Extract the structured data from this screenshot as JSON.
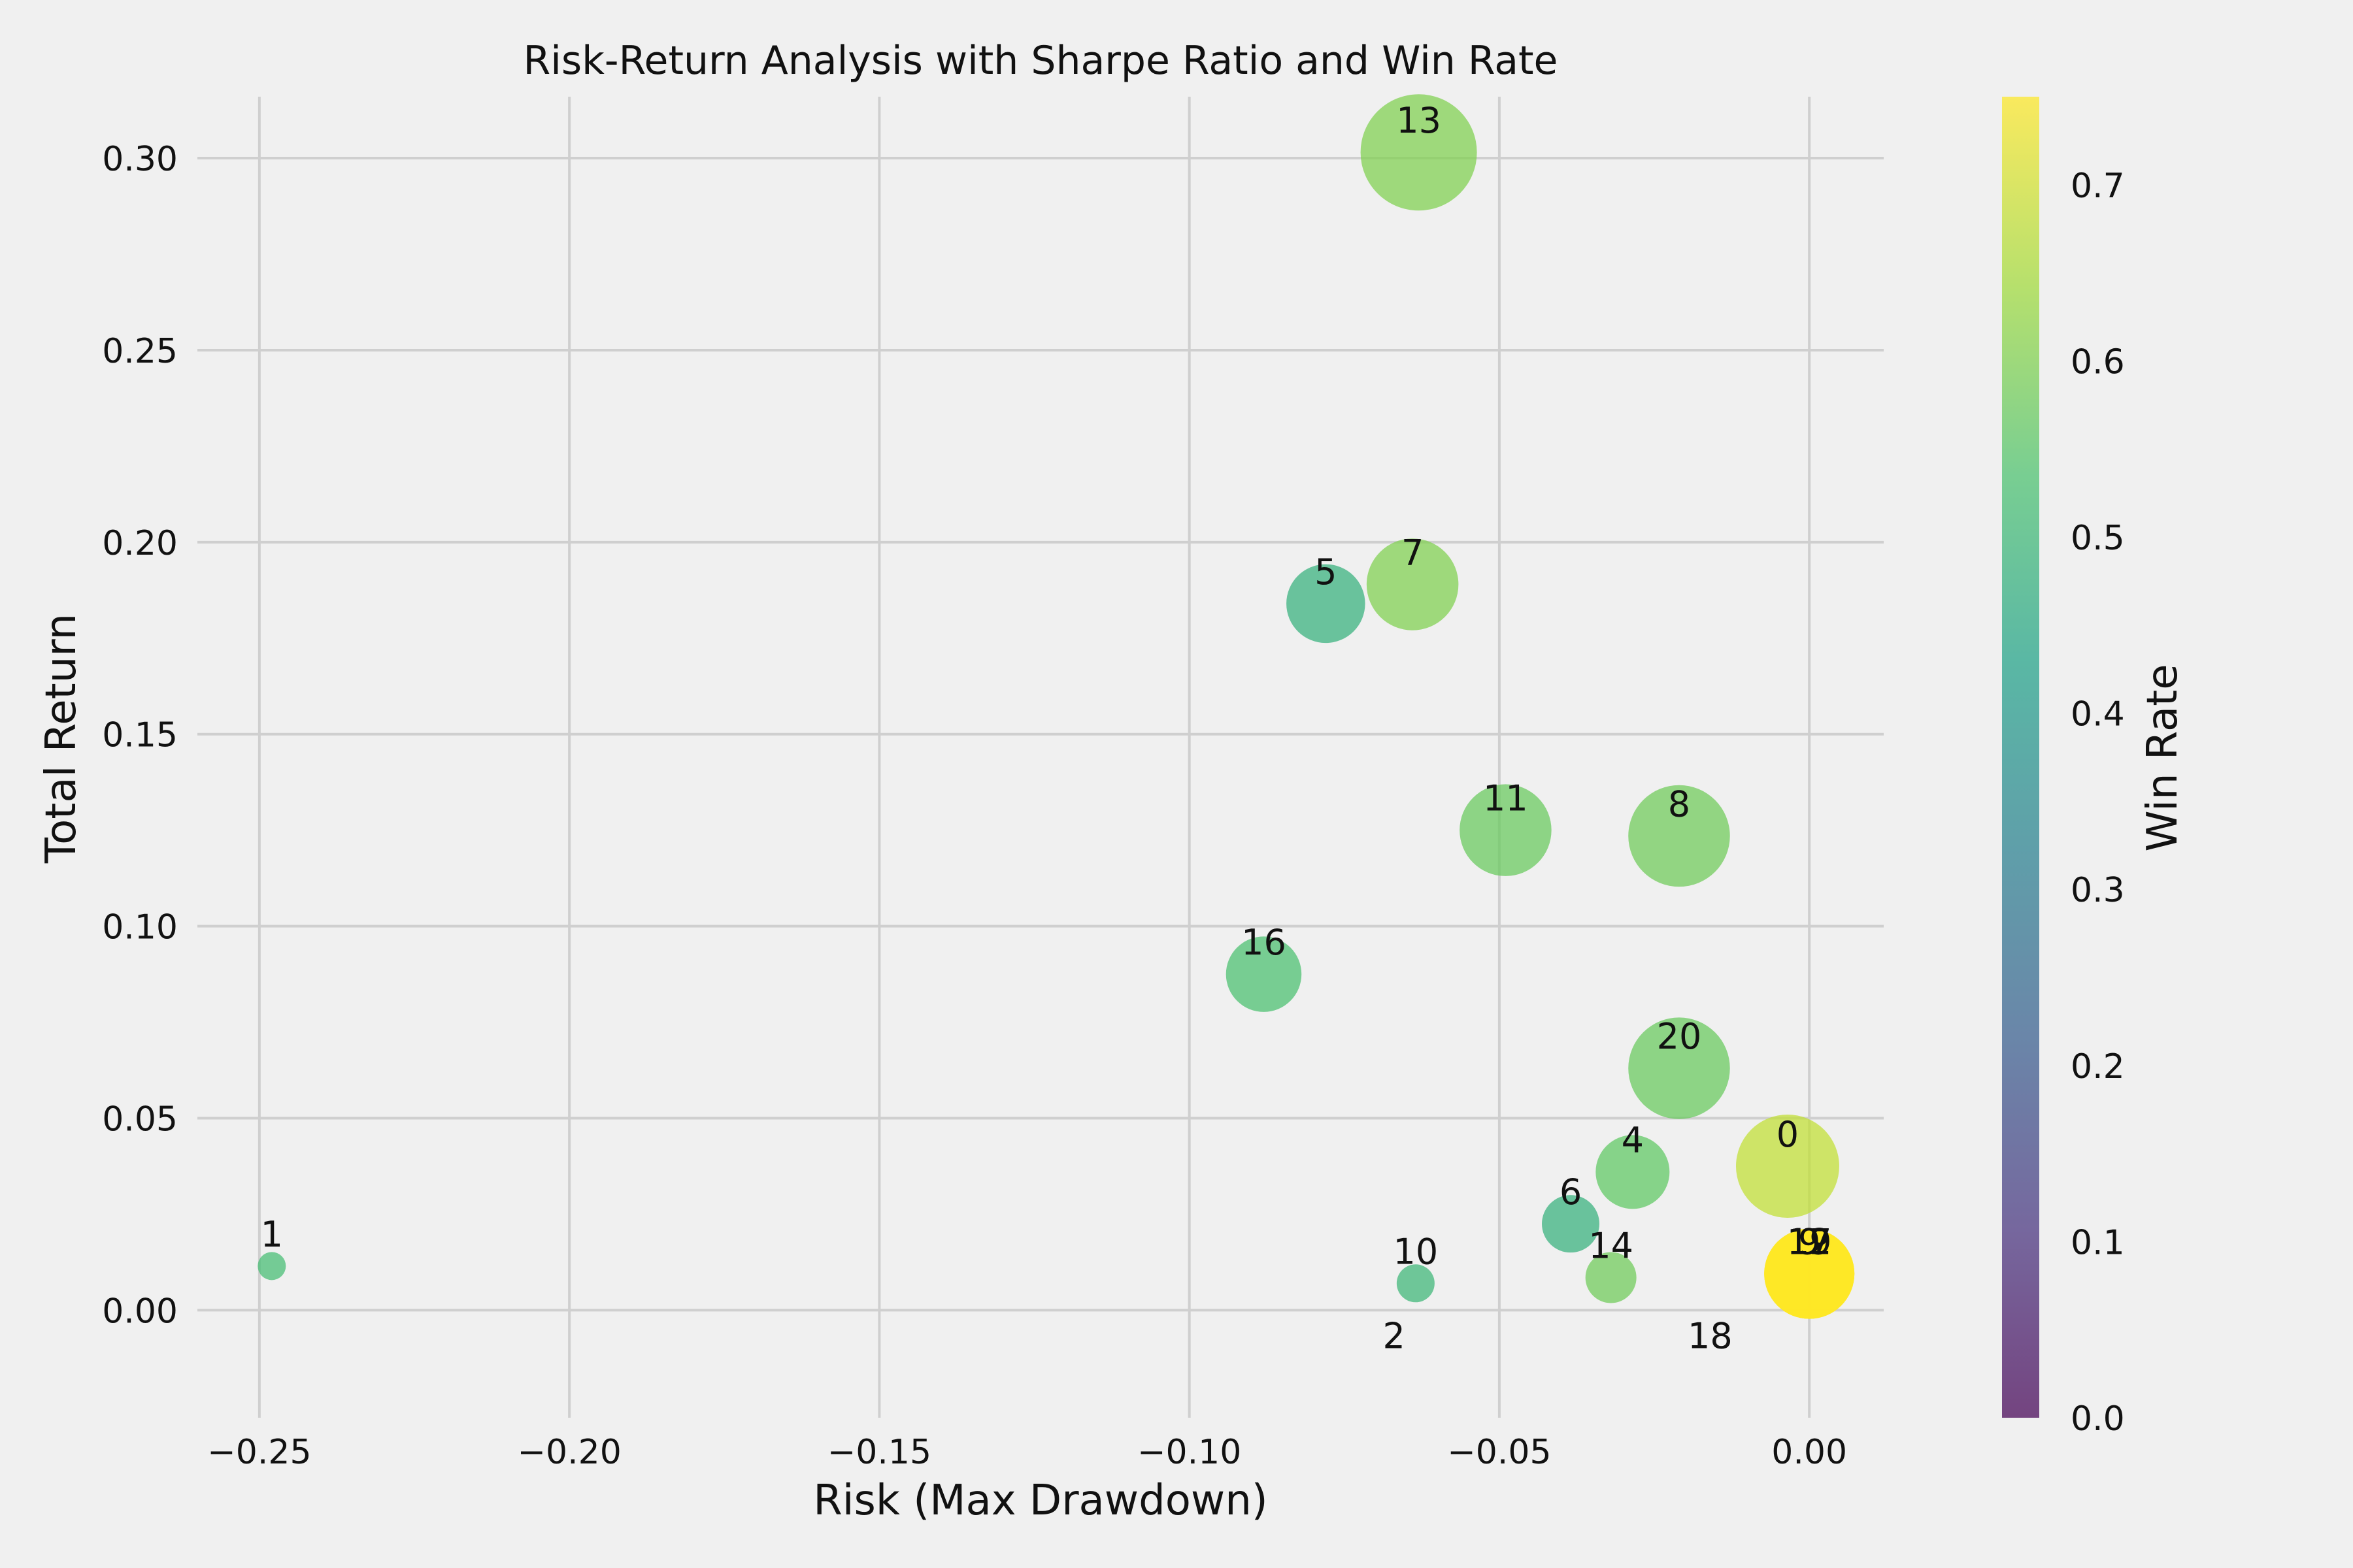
{
  "chart_data": {
    "type": "scatter",
    "title": "Risk-Return Analysis with Sharpe Ratio and Win Rate",
    "xlabel": "Risk (Max Drawdown)",
    "ylabel": "Total Return",
    "xlim": [
      -0.26,
      0.012
    ],
    "ylim": [
      -0.028,
      0.316
    ],
    "x_ticks": [
      -0.25,
      -0.2,
      -0.15,
      -0.1,
      -0.05,
      0.0
    ],
    "x_tick_labels": [
      "−0.25",
      "−0.20",
      "−0.15",
      "−0.10",
      "−0.05",
      "0.00"
    ],
    "y_ticks": [
      0.0,
      0.05,
      0.1,
      0.15,
      0.2,
      0.25,
      0.3
    ],
    "y_tick_labels": [
      "0.00",
      "0.05",
      "0.10",
      "0.15",
      "0.20",
      "0.25",
      "0.30"
    ],
    "grid": true,
    "colorbar": {
      "label": "Win Rate",
      "colormap": "viridis",
      "range": [
        0.0,
        0.75
      ],
      "ticks": [
        0.0,
        0.1,
        0.2,
        0.3,
        0.4,
        0.5,
        0.6,
        0.7
      ],
      "tick_labels": [
        "0.0",
        "0.1",
        "0.2",
        "0.3",
        "0.4",
        "0.5",
        "0.6",
        "0.7"
      ]
    },
    "size_encoding": "Sharpe Ratio",
    "points": [
      {
        "label": "0",
        "x": -0.0035,
        "y": 0.0375,
        "win_rate": 0.68,
        "sharpe": 2.6
      },
      {
        "label": "1",
        "x": -0.248,
        "y": 0.0115,
        "win_rate": 0.52,
        "sharpe": 0.3
      },
      {
        "label": "2",
        "x": -0.067,
        "y": -0.001,
        "win_rate": 0.0,
        "sharpe": 0.0
      },
      {
        "label": "4",
        "x": -0.0285,
        "y": 0.036,
        "win_rate": 0.56,
        "sharpe": 1.7
      },
      {
        "label": "5",
        "x": -0.078,
        "y": 0.184,
        "win_rate": 0.48,
        "sharpe": 1.85
      },
      {
        "label": "6",
        "x": -0.0385,
        "y": 0.0225,
        "win_rate": 0.48,
        "sharpe": 1.2
      },
      {
        "label": "7",
        "x": -0.064,
        "y": 0.189,
        "win_rate": 0.6,
        "sharpe": 2.25
      },
      {
        "label": "8",
        "x": -0.021,
        "y": 0.1235,
        "win_rate": 0.58,
        "sharpe": 2.55
      },
      {
        "label": "9",
        "x": 0.0,
        "y": 0.0095,
        "win_rate": 0.75,
        "sharpe": 2.2
      },
      {
        "label": "10",
        "x": -0.0635,
        "y": 0.007,
        "win_rate": 0.5,
        "sharpe": 0.6
      },
      {
        "label": "11",
        "x": -0.049,
        "y": 0.125,
        "win_rate": 0.57,
        "sharpe": 2.25
      },
      {
        "label": "12",
        "x": 0.0,
        "y": 0.0095,
        "win_rate": 0.75,
        "sharpe": 2.2
      },
      {
        "label": "13",
        "x": -0.063,
        "y": 0.3015,
        "win_rate": 0.6,
        "sharpe": 3.0
      },
      {
        "label": "14",
        "x": -0.032,
        "y": 0.0085,
        "win_rate": 0.58,
        "sharpe": 1.0
      },
      {
        "label": "16",
        "x": -0.088,
        "y": 0.0875,
        "win_rate": 0.53,
        "sharpe": 1.75
      },
      {
        "label": "17",
        "x": 0.0,
        "y": 0.0095,
        "win_rate": 0.75,
        "sharpe": 2.2
      },
      {
        "label": "18",
        "x": -0.016,
        "y": -0.001,
        "win_rate": 0.0,
        "sharpe": 0.0
      },
      {
        "label": "19",
        "x": 0.0,
        "y": 0.0095,
        "win_rate": 0.75,
        "sharpe": 2.2
      },
      {
        "label": "20",
        "x": -0.021,
        "y": 0.063,
        "win_rate": 0.57,
        "sharpe": 2.55
      }
    ]
  }
}
